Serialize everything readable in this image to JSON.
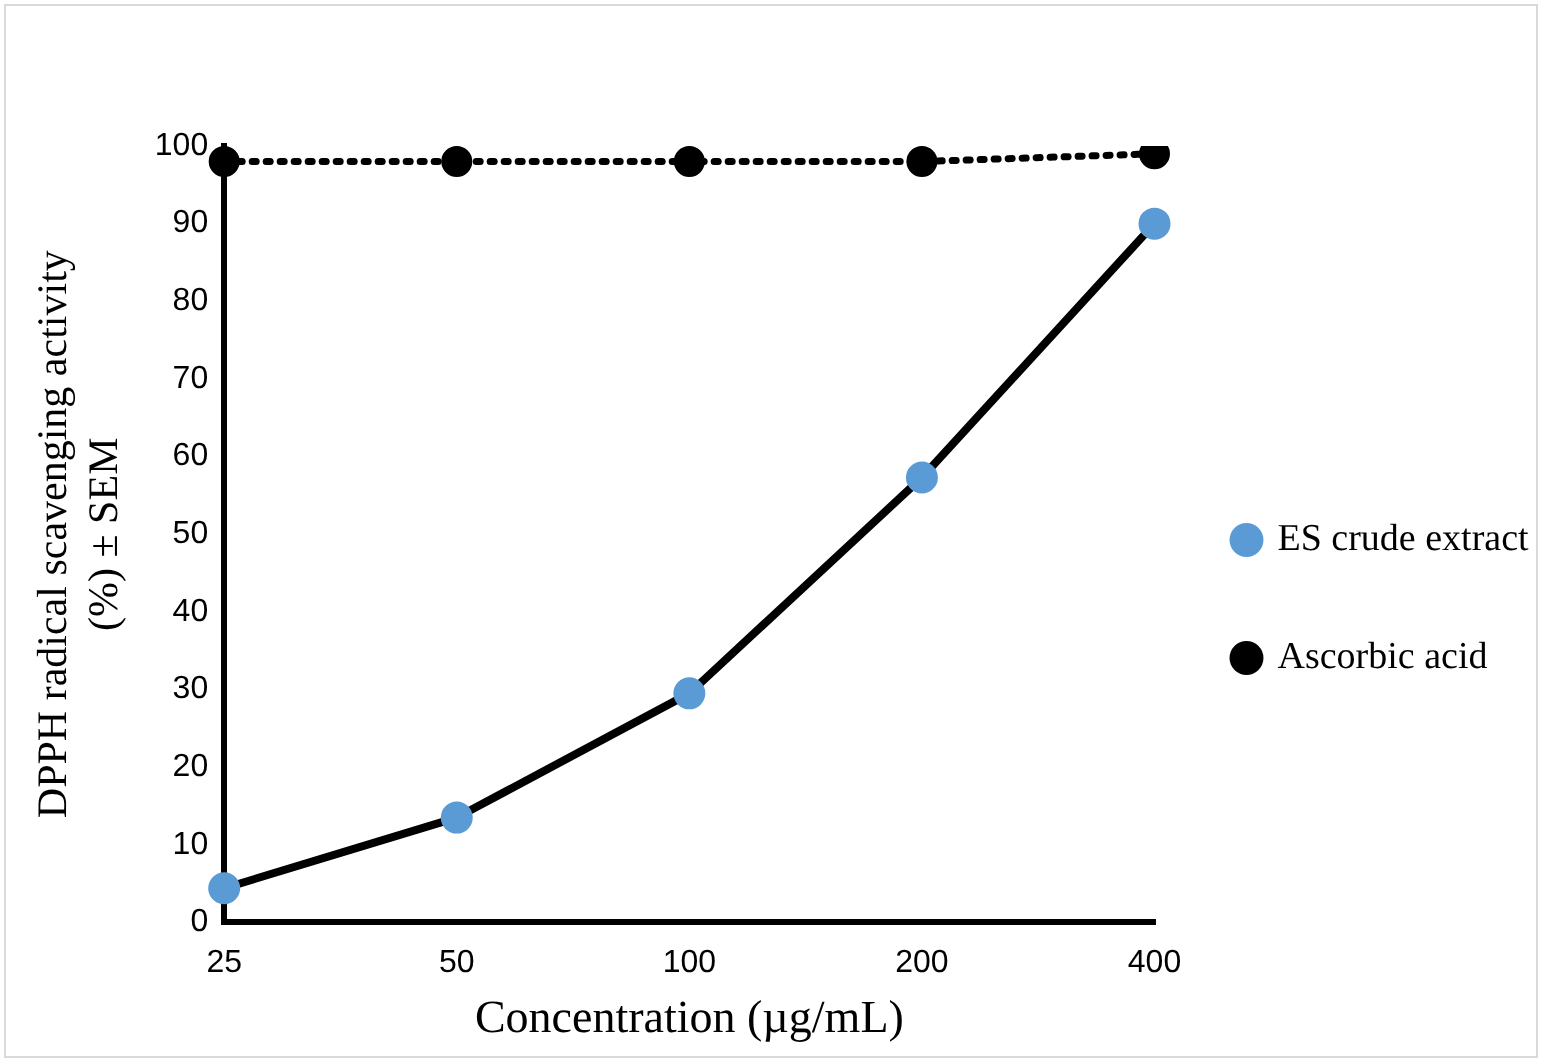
{
  "chart_data": {
    "type": "line",
    "xlabel": "Concentration (µg/mL)",
    "ylabel": "DPPH radical scavenging activity (%) ± SEM",
    "categories": [
      "25",
      "50",
      "100",
      "200",
      "400"
    ],
    "series": [
      {
        "name": "ES crude extract",
        "color": "#000000",
        "values": [
          4.4,
          13.5,
          29.5,
          57.3,
          90
        ],
        "marker": "circle",
        "colors": [
          "#5b9bd5",
          "#5b9bd5",
          "#5b9bd5",
          "#5b9bd5",
          "#5b9bd5"
        ],
        "line_style": "solid"
      },
      {
        "name": "Ascorbic acid",
        "color": "#000000",
        "values": [
          98,
          98,
          98,
          98,
          99
        ],
        "marker": "circle",
        "line_style": "dotted"
      }
    ],
    "ylim": [
      0,
      100
    ],
    "yticks": [
      0,
      10,
      20,
      30,
      40,
      50,
      60,
      70,
      80,
      90,
      100
    ],
    "grid": false,
    "legend": "right"
  }
}
